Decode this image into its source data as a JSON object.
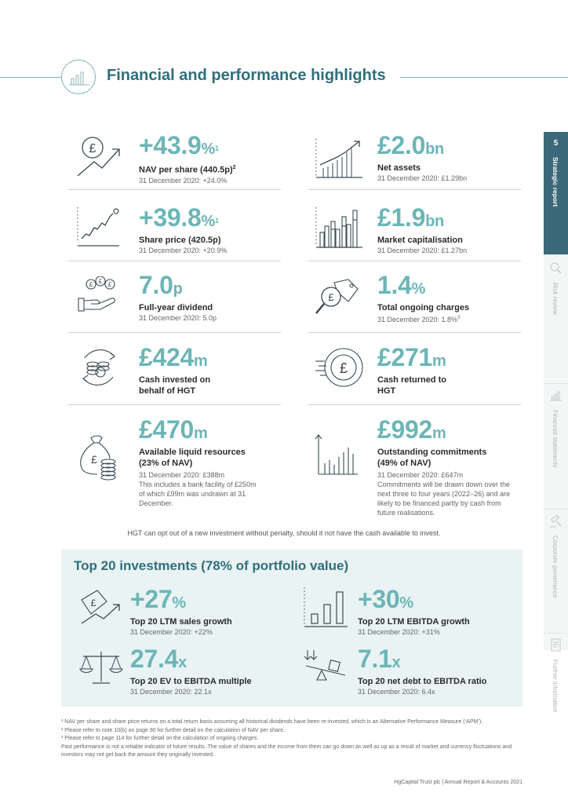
{
  "header": {
    "title": "Financial and performance highlights"
  },
  "side_tabs": {
    "page_number": "5",
    "items": [
      {
        "label": "Strategic report"
      },
      {
        "label": "Risk review"
      },
      {
        "label": "Financial statements"
      },
      {
        "label": "Corporate governance"
      },
      {
        "label": "Further information"
      }
    ]
  },
  "kpis": [
    {
      "value": "+43.9",
      "unit": "%",
      "sup": "1",
      "label": "NAV per share (440.5p)",
      "label_sup": "2",
      "sub": "31 December 2020: +24.0%",
      "icon": "pound-growth-icon"
    },
    {
      "value": "£2.0",
      "unit": "bn",
      "label": "Net assets",
      "sub": "31 December 2020: £1.29bn",
      "icon": "bar-growth-icon"
    },
    {
      "value": "+39.8",
      "unit": "%",
      "sup": "1",
      "label": "Share price (420.5p)",
      "sub": "31 December 2020: +20.9%",
      "icon": "line-chart-icon"
    },
    {
      "value": "£1.9",
      "unit": "bn",
      "label": "Market capitalisation",
      "sub": "31 December 2020: £1.27bn",
      "icon": "grouped-bars-icon"
    },
    {
      "value": "7.0",
      "unit": "p",
      "label": "Full-year dividend",
      "sub": "31 December 2020: 5.0p",
      "icon": "hand-coins-icon"
    },
    {
      "value": "1.4",
      "unit": "%",
      "label": "Total ongoing charges",
      "sub": "31 December 2020: 1.8%",
      "sub_sup": "3",
      "icon": "magnifier-tag-icon"
    },
    {
      "value": "£424",
      "unit": "m",
      "label": "Cash invested on behalf of HGT",
      "sub": "",
      "icon": "coins-cycle-icon"
    },
    {
      "value": "£271",
      "unit": "m",
      "label": "Cash returned to HGT",
      "sub": "",
      "icon": "pound-speed-icon"
    },
    {
      "value": "£470",
      "unit": "m",
      "label": "Available liquid resources (23% of NAV)",
      "sub": "31 December 2020: £388m",
      "detail": "This includes a bank facility of £250m of which £99m was undrawn at 31 December.",
      "icon": "money-bag-icon"
    },
    {
      "value": "£992",
      "unit": "m",
      "label": "Outstanding commitments (49% of NAV)",
      "sub": "31 December 2020: £647m",
      "detail": "Commitments will be drawn down over the next three to four years (2022–26) and are likely to be financed partly by cash from future realisations.",
      "icon": "rising-lines-icon"
    }
  ],
  "note": "HGT can opt out of a new investment without penalty, should it not have the cash available to invest.",
  "top20": {
    "title": "Top 20 investments (78% of portfolio value)",
    "items": [
      {
        "value": "+27",
        "unit": "%",
        "label": "Top 20 LTM sales growth",
        "sub": "31 December 2020: +22%",
        "icon": "pound-tag-growth-icon"
      },
      {
        "value": "+30",
        "unit": "%",
        "label": "Top 20 LTM EBITDA growth",
        "sub": "31 December 2020: +31%",
        "icon": "three-bars-icon"
      },
      {
        "value": "27.4",
        "unit": "x",
        "label": "Top 20 EV to EBITDA multiple",
        "sub": "31 December 2020: 22.1x",
        "icon": "scales-icon"
      },
      {
        "value": "7.1",
        "unit": "x",
        "label": "Top 20 net debt to EBITDA ratio",
        "sub": "31 December 2020: 6.4x",
        "icon": "seesaw-icon"
      }
    ]
  },
  "footnotes": [
    "¹ NAV per share and share price returns on a total return basis assuming all historical dividends have been re-invested, which is an Alternative Performance Measure (‘APM’).",
    "² Please refer to note 10(b) on page 90 for further detail on the calculation of NAV per share.",
    "³ Please refer to page 114 for further detail on the calculation of ongoing charges.",
    "Past performance is not a reliable indicator of future results. The value of shares and the income from them can go down as well as up as a result of market and currency fluctuations and investors may not get back the amount they originally invested."
  ],
  "footer": "HgCapital Trust plc  |  Annual Report & Accounts 2021",
  "colors": {
    "accent": "#6db5b7",
    "dark": "#2f6f7b",
    "tab": "#3c6979",
    "box": "#e9f3f3"
  }
}
